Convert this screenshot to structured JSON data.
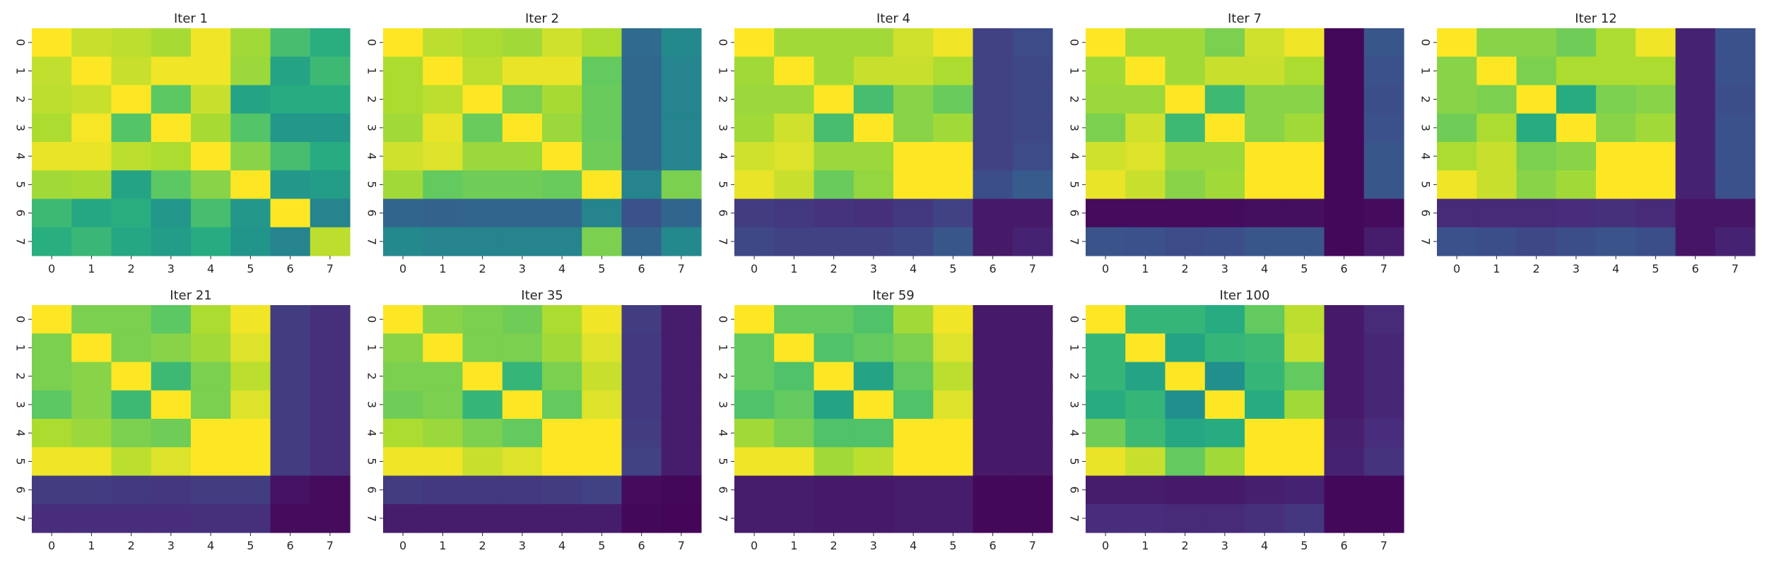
{
  "chart_data": {
    "type": "heatmap",
    "colormap": "viridis",
    "value_range": [
      0,
      1
    ],
    "colorbar": false,
    "grid": false,
    "layout": "2 rows x 5 columns (last slot empty)",
    "x_tick_labels": [
      "0",
      "1",
      "2",
      "3",
      "4",
      "5",
      "6",
      "7"
    ],
    "y_tick_labels": [
      "0",
      "1",
      "2",
      "3",
      "4",
      "5",
      "6",
      "7"
    ],
    "panels": [
      {
        "title": "Iter 1",
        "values": [
          [
            1.0,
            0.92,
            0.9,
            0.87,
            0.98,
            0.86,
            0.7,
            0.63
          ],
          [
            0.91,
            1.0,
            0.92,
            0.98,
            0.98,
            0.85,
            0.58,
            0.68
          ],
          [
            0.9,
            0.92,
            1.0,
            0.75,
            0.92,
            0.58,
            0.62,
            0.62
          ],
          [
            0.88,
            0.99,
            0.73,
            1.0,
            0.87,
            0.73,
            0.53,
            0.53
          ],
          [
            0.97,
            0.97,
            0.9,
            0.88,
            1.0,
            0.82,
            0.7,
            0.62
          ],
          [
            0.86,
            0.87,
            0.58,
            0.75,
            0.82,
            1.0,
            0.53,
            0.55
          ],
          [
            0.68,
            0.6,
            0.63,
            0.53,
            0.7,
            0.53,
            1.0,
            0.45
          ],
          [
            0.63,
            0.67,
            0.6,
            0.55,
            0.62,
            0.52,
            0.45,
            0.9
          ]
        ]
      },
      {
        "title": "Iter 2",
        "values": [
          [
            1.0,
            0.9,
            0.88,
            0.86,
            0.93,
            0.88,
            0.35,
            0.47
          ],
          [
            0.88,
            1.0,
            0.9,
            0.97,
            0.97,
            0.76,
            0.34,
            0.45
          ],
          [
            0.88,
            0.9,
            1.0,
            0.8,
            0.87,
            0.77,
            0.34,
            0.45
          ],
          [
            0.86,
            0.97,
            0.77,
            1.0,
            0.85,
            0.77,
            0.34,
            0.45
          ],
          [
            0.93,
            0.95,
            0.85,
            0.85,
            1.0,
            0.78,
            0.34,
            0.45
          ],
          [
            0.86,
            0.76,
            0.78,
            0.78,
            0.77,
            1.0,
            0.45,
            0.8
          ],
          [
            0.33,
            0.32,
            0.33,
            0.33,
            0.33,
            0.45,
            0.25,
            0.33
          ],
          [
            0.47,
            0.45,
            0.45,
            0.45,
            0.45,
            0.8,
            0.33,
            0.47
          ]
        ]
      },
      {
        "title": "Iter 4",
        "values": [
          [
            1.0,
            0.86,
            0.86,
            0.86,
            0.93,
            0.98,
            0.2,
            0.23
          ],
          [
            0.86,
            1.0,
            0.86,
            0.92,
            0.92,
            0.88,
            0.2,
            0.22
          ],
          [
            0.85,
            0.85,
            1.0,
            0.7,
            0.82,
            0.77,
            0.2,
            0.22
          ],
          [
            0.86,
            0.93,
            0.7,
            1.0,
            0.82,
            0.86,
            0.2,
            0.22
          ],
          [
            0.93,
            0.95,
            0.85,
            0.85,
            1.0,
            1.0,
            0.2,
            0.23
          ],
          [
            0.97,
            0.92,
            0.77,
            0.84,
            1.0,
            1.0,
            0.24,
            0.29
          ],
          [
            0.18,
            0.17,
            0.15,
            0.14,
            0.17,
            0.2,
            0.07,
            0.07
          ],
          [
            0.22,
            0.2,
            0.2,
            0.2,
            0.22,
            0.27,
            0.07,
            0.1
          ]
        ]
      },
      {
        "title": "Iter 7",
        "values": [
          [
            1.0,
            0.86,
            0.86,
            0.8,
            0.93,
            0.98,
            0.02,
            0.27
          ],
          [
            0.86,
            1.0,
            0.86,
            0.92,
            0.92,
            0.88,
            0.02,
            0.25
          ],
          [
            0.85,
            0.85,
            1.0,
            0.68,
            0.82,
            0.82,
            0.02,
            0.24
          ],
          [
            0.8,
            0.93,
            0.68,
            1.0,
            0.82,
            0.86,
            0.02,
            0.25
          ],
          [
            0.93,
            0.95,
            0.85,
            0.85,
            1.0,
            1.0,
            0.02,
            0.27
          ],
          [
            0.97,
            0.92,
            0.82,
            0.86,
            1.0,
            1.0,
            0.02,
            0.27
          ],
          [
            0.03,
            0.03,
            0.03,
            0.03,
            0.04,
            0.04,
            0.02,
            0.03
          ],
          [
            0.26,
            0.25,
            0.23,
            0.24,
            0.27,
            0.27,
            0.02,
            0.08
          ]
        ]
      },
      {
        "title": "Iter 12",
        "values": [
          [
            1.0,
            0.82,
            0.82,
            0.78,
            0.88,
            0.98,
            0.1,
            0.25
          ],
          [
            0.82,
            1.0,
            0.8,
            0.88,
            0.88,
            0.88,
            0.1,
            0.25
          ],
          [
            0.82,
            0.8,
            1.0,
            0.62,
            0.8,
            0.82,
            0.1,
            0.24
          ],
          [
            0.78,
            0.88,
            0.62,
            1.0,
            0.82,
            0.86,
            0.1,
            0.25
          ],
          [
            0.88,
            0.92,
            0.8,
            0.82,
            1.0,
            1.0,
            0.1,
            0.25
          ],
          [
            0.98,
            0.92,
            0.82,
            0.86,
            1.0,
            1.0,
            0.1,
            0.25
          ],
          [
            0.12,
            0.12,
            0.12,
            0.13,
            0.14,
            0.12,
            0.06,
            0.06
          ],
          [
            0.25,
            0.24,
            0.22,
            0.24,
            0.26,
            0.24,
            0.06,
            0.1
          ]
        ]
      },
      {
        "title": "Iter 21",
        "values": [
          [
            1.0,
            0.8,
            0.8,
            0.75,
            0.88,
            0.98,
            0.18,
            0.14
          ],
          [
            0.8,
            1.0,
            0.8,
            0.82,
            0.86,
            0.95,
            0.18,
            0.14
          ],
          [
            0.8,
            0.82,
            1.0,
            0.68,
            0.8,
            0.9,
            0.18,
            0.14
          ],
          [
            0.75,
            0.82,
            0.68,
            1.0,
            0.8,
            0.95,
            0.18,
            0.14
          ],
          [
            0.88,
            0.85,
            0.8,
            0.78,
            1.0,
            1.0,
            0.18,
            0.14
          ],
          [
            0.98,
            0.98,
            0.9,
            0.95,
            1.0,
            1.0,
            0.18,
            0.14
          ],
          [
            0.18,
            0.18,
            0.17,
            0.16,
            0.18,
            0.18,
            0.05,
            0.03
          ],
          [
            0.13,
            0.13,
            0.13,
            0.13,
            0.14,
            0.14,
            0.03,
            0.03
          ]
        ]
      },
      {
        "title": "Iter 35",
        "values": [
          [
            1.0,
            0.82,
            0.8,
            0.78,
            0.88,
            0.98,
            0.18,
            0.08
          ],
          [
            0.82,
            1.0,
            0.8,
            0.8,
            0.86,
            0.95,
            0.17,
            0.08
          ],
          [
            0.8,
            0.8,
            1.0,
            0.66,
            0.8,
            0.92,
            0.17,
            0.08
          ],
          [
            0.78,
            0.8,
            0.66,
            1.0,
            0.76,
            0.95,
            0.17,
            0.08
          ],
          [
            0.88,
            0.85,
            0.8,
            0.76,
            1.0,
            1.0,
            0.18,
            0.08
          ],
          [
            0.98,
            0.98,
            0.92,
            0.95,
            1.0,
            1.0,
            0.2,
            0.08
          ],
          [
            0.18,
            0.17,
            0.17,
            0.17,
            0.18,
            0.2,
            0.03,
            0.02
          ],
          [
            0.08,
            0.08,
            0.08,
            0.08,
            0.08,
            0.08,
            0.02,
            0.01
          ]
        ]
      },
      {
        "title": "Iter 59",
        "values": [
          [
            1.0,
            0.76,
            0.76,
            0.72,
            0.86,
            0.98,
            0.07,
            0.07
          ],
          [
            0.76,
            1.0,
            0.72,
            0.76,
            0.8,
            0.95,
            0.07,
            0.07
          ],
          [
            0.76,
            0.72,
            1.0,
            0.58,
            0.76,
            0.9,
            0.07,
            0.07
          ],
          [
            0.72,
            0.76,
            0.58,
            1.0,
            0.72,
            0.95,
            0.07,
            0.07
          ],
          [
            0.86,
            0.8,
            0.72,
            0.72,
            1.0,
            1.0,
            0.07,
            0.07
          ],
          [
            0.98,
            0.98,
            0.86,
            0.9,
            1.0,
            1.0,
            0.07,
            0.07
          ],
          [
            0.08,
            0.08,
            0.07,
            0.07,
            0.08,
            0.08,
            0.02,
            0.02
          ],
          [
            0.08,
            0.08,
            0.07,
            0.07,
            0.08,
            0.08,
            0.02,
            0.02
          ]
        ]
      },
      {
        "title": "Iter 100",
        "values": [
          [
            1.0,
            0.66,
            0.66,
            0.62,
            0.76,
            0.9,
            0.07,
            0.12
          ],
          [
            0.66,
            1.0,
            0.58,
            0.66,
            0.68,
            0.92,
            0.07,
            0.11
          ],
          [
            0.66,
            0.58,
            1.0,
            0.5,
            0.66,
            0.76,
            0.07,
            0.11
          ],
          [
            0.62,
            0.66,
            0.5,
            1.0,
            0.62,
            0.86,
            0.07,
            0.11
          ],
          [
            0.78,
            0.68,
            0.6,
            0.62,
            1.0,
            1.0,
            0.09,
            0.13
          ],
          [
            0.97,
            0.92,
            0.76,
            0.86,
            1.0,
            1.0,
            0.1,
            0.15
          ],
          [
            0.08,
            0.08,
            0.07,
            0.07,
            0.09,
            0.1,
            0.02,
            0.02
          ],
          [
            0.13,
            0.13,
            0.12,
            0.12,
            0.14,
            0.16,
            0.02,
            0.02
          ]
        ]
      }
    ]
  }
}
